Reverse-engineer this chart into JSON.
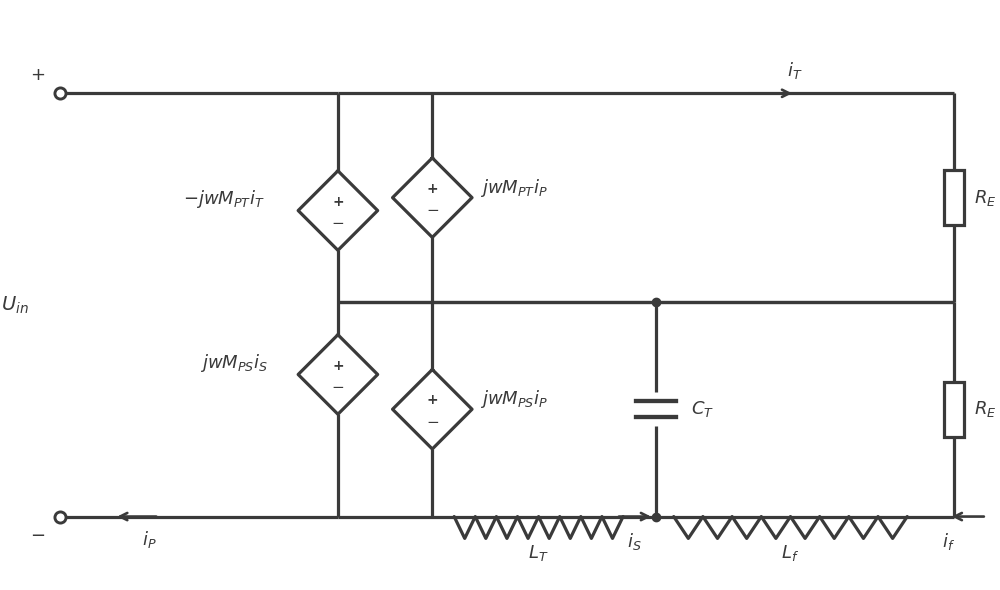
{
  "fig_width": 10.0,
  "fig_height": 5.9,
  "bg_color": "#ffffff",
  "line_color": "#3a3a3a",
  "line_width": 2.3,
  "font_size": 13
}
